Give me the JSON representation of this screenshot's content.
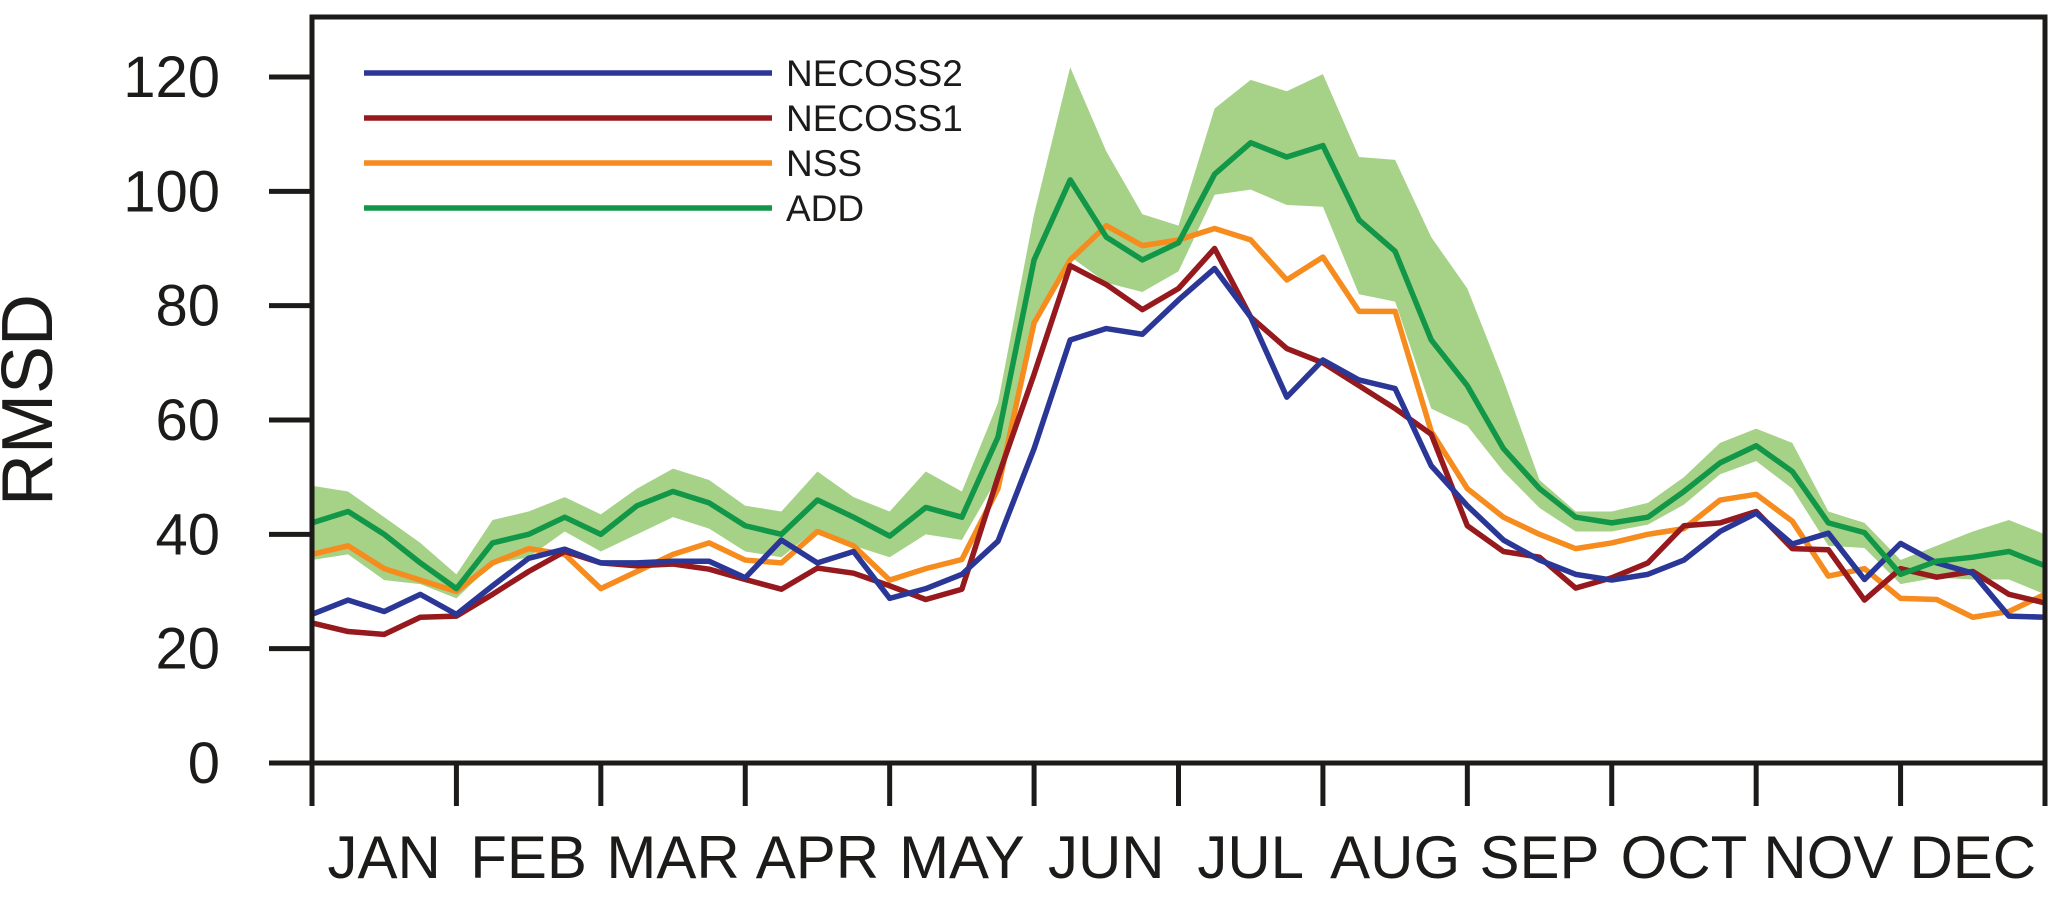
{
  "chart_data": {
    "type": "line",
    "title": "",
    "ylabel": "RMSD",
    "xlabel": "",
    "ylim": [
      0,
      130.5
    ],
    "y_ticks": [
      0,
      20,
      40,
      60,
      80,
      100,
      120
    ],
    "categories": [
      "JAN",
      "FEB",
      "MAR",
      "APR",
      "MAY",
      "JUN",
      "JUL",
      "AUG",
      "SEP",
      "OCT",
      "NOV",
      "DEC"
    ],
    "points_per_month": 4,
    "grid": "off",
    "legend_position": "top-left",
    "colors": {
      "NECOSS2": "#2b3796",
      "NECOSS1": "#96191d",
      "NSS": "#f68b1e",
      "ADD": "#129648",
      "band": "#a6d287",
      "axis": "#1c1b1a"
    },
    "series": [
      {
        "name": "NECOSS2",
        "values": [
          26,
          28.5,
          26.5,
          29.5,
          26,
          31,
          35.8,
          37.4,
          35,
          35,
          35.3,
          35.3,
          32.4,
          39,
          35,
          37,
          28.8,
          30.5,
          33,
          38.8,
          55,
          74,
          76,
          75,
          81,
          86.5,
          78,
          64,
          70.5,
          67,
          65.5,
          52,
          45,
          39,
          35.5,
          33,
          32,
          33,
          35.5,
          40.5,
          43.7,
          38.3,
          40.2,
          32.1,
          38.4,
          35,
          33.2,
          25.7,
          25.5
        ]
      },
      {
        "name": "NECOSS1",
        "values": [
          24.5,
          23,
          22.5,
          25.5,
          25.7,
          29.5,
          33.5,
          37,
          35,
          34.5,
          34.8,
          33.9,
          32.1,
          30.4,
          34.1,
          33.2,
          31,
          28.6,
          30.4,
          50,
          68,
          87,
          83.7,
          79.3,
          83,
          90,
          78,
          72.5,
          70,
          66,
          62,
          57.5,
          41.5,
          37,
          36,
          30.6,
          32.4,
          35,
          41.5,
          42,
          44,
          37.5,
          37.3,
          28.5,
          34,
          32.5,
          33.5,
          29.5,
          28
        ]
      },
      {
        "name": "NSS",
        "values": [
          36.5,
          38,
          34,
          32,
          30,
          35,
          37.5,
          36.5,
          30.5,
          33.5,
          36.5,
          38.5,
          35.5,
          35,
          40.5,
          38,
          32,
          34,
          35.6,
          48,
          77,
          88,
          94,
          90.5,
          91.5,
          93.5,
          91.5,
          84.5,
          88.5,
          79,
          79,
          58,
          48,
          43,
          40,
          37.5,
          38.5,
          40,
          41,
          46,
          47,
          42.3,
          32.7,
          34,
          28.8,
          28.6,
          25.5,
          26.5,
          29.5
        ]
      },
      {
        "name": "ADD",
        "values": [
          42,
          44,
          40,
          35,
          30.5,
          38.5,
          40,
          43,
          40,
          45,
          47.5,
          45.5,
          41.5,
          40,
          46,
          43,
          39.7,
          44.7,
          43,
          57,
          88,
          102,
          92,
          88,
          91,
          103,
          108.5,
          106,
          108,
          95,
          89.5,
          74,
          66,
          55,
          48,
          43,
          42,
          43,
          47.5,
          52.5,
          55.5,
          51,
          42,
          40.3,
          33,
          35.3,
          36,
          37,
          34.5
        ]
      }
    ],
    "band": {
      "attached_to": "ADD",
      "top": [
        48.5,
        47.5,
        43,
        38.5,
        33,
        42.5,
        44,
        46.5,
        43.5,
        48,
        51.5,
        49.5,
        45,
        44,
        51,
        46.5,
        44,
        51,
        47.5,
        63,
        96,
        121.7,
        107,
        96,
        94,
        114.5,
        119.5,
        117.5,
        120.5,
        106,
        105.5,
        92,
        83,
        67,
        49.5,
        44,
        44,
        45.5,
        50,
        56,
        58.5,
        56,
        44,
        42,
        35.5,
        38,
        40.5,
        42.5,
        40
      ],
      "bottom": [
        35.5,
        36.5,
        32,
        31.3,
        28.8,
        34.8,
        36,
        40.5,
        37,
        40,
        43,
        41,
        37,
        36,
        41,
        38,
        36,
        40,
        39,
        50,
        78,
        88.6,
        84,
        82.4,
        86,
        99.4,
        100.3,
        97.6,
        97.3,
        82,
        80.7,
        62,
        59,
        51,
        44.6,
        40.5,
        40.5,
        41.7,
        45.2,
        50.5,
        52.8,
        48,
        38,
        37.6,
        31.3,
        32.4,
        32.1,
        32.1,
        29.5
      ]
    },
    "legend": [
      {
        "label": "NECOSS2",
        "color": "#2b3796"
      },
      {
        "label": "NECOSS1",
        "color": "#96191d"
      },
      {
        "label": "NSS",
        "color": "#f68b1e"
      },
      {
        "label": "ADD",
        "color": "#129648"
      }
    ]
  },
  "layout_text": {
    "y_axis_title": "RMSD"
  }
}
